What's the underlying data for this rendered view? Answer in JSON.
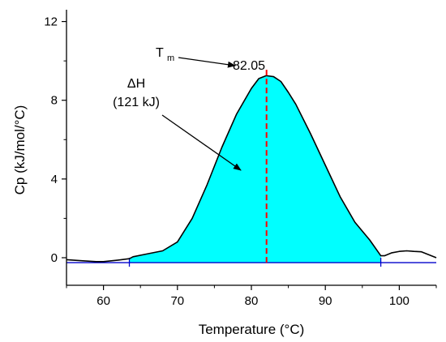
{
  "chart_data": {
    "type": "area",
    "xlabel": "Temperature (°C)",
    "ylabel": "Cp (kJ/mol/°C)",
    "xlim": [
      55,
      105
    ],
    "ylim": [
      -1.4,
      12.6
    ],
    "xticks": [
      60,
      70,
      80,
      90,
      100
    ],
    "yticks": [
      0,
      4,
      8,
      12
    ],
    "x_tick_labels": [
      "60",
      "70",
      "80",
      "90",
      "100"
    ],
    "y_tick_labels": [
      "0",
      "4",
      "8",
      "12"
    ],
    "grid": false,
    "legend": "none",
    "colors": {
      "fill": "#00ffff",
      "curve": "#000000",
      "baseline": "#0000cc",
      "tm_line": "#ff0000"
    },
    "series": [
      {
        "x": [
          55,
          57,
          59,
          60,
          62,
          63.5,
          64,
          66,
          68,
          70,
          72,
          74,
          76,
          78,
          80,
          81,
          82,
          83,
          84,
          85,
          86,
          88,
          90,
          92,
          94,
          96,
          97.5,
          98,
          99,
          100,
          101,
          102,
          103,
          104,
          105
        ],
        "y": [
          -0.1,
          -0.15,
          -0.2,
          -0.2,
          -0.12,
          -0.05,
          0.05,
          0.2,
          0.35,
          0.8,
          2.0,
          3.7,
          5.6,
          7.3,
          8.6,
          9.1,
          9.25,
          9.2,
          8.95,
          8.4,
          7.8,
          6.3,
          4.7,
          3.1,
          1.8,
          0.9,
          0.1,
          0.1,
          0.25,
          0.32,
          0.35,
          0.32,
          0.3,
          0.15,
          0.0
        ]
      }
    ],
    "baseline": {
      "x": [
        55,
        105
      ],
      "y": [
        -0.25,
        -0.25
      ]
    },
    "integration_limits": [
      63.5,
      97.5
    ],
    "tm_value": 82.05,
    "annotations": {
      "tm_symbol": "T",
      "tm_subscript": "m",
      "tm_value_label": "82.05",
      "delta_h_label": "ΔH",
      "delta_h_value": "(121 kJ)"
    }
  }
}
